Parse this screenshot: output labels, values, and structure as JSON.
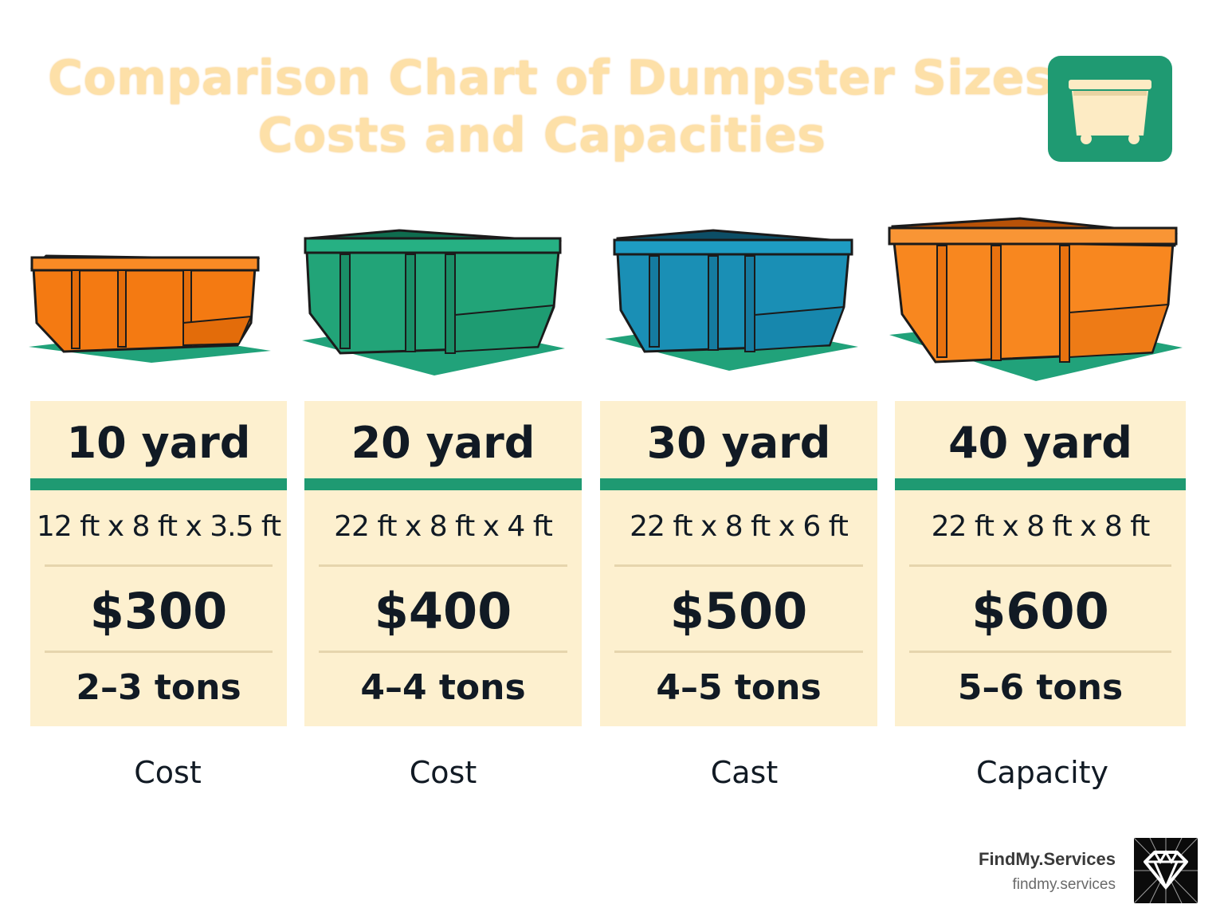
{
  "header": {
    "title_line1": "Comparison Chart of Dumpster Sizes,",
    "title_line2": "Costs and Capacities",
    "icon": "dumpster-icon"
  },
  "colors": {
    "accent_green": "#1f9a72",
    "card_bg": "#fdf0cf",
    "title": "#fde0a8",
    "orange": "#f47a12",
    "blue": "#1a8fb5"
  },
  "dumpsters": [
    {
      "size": "10 yard",
      "dimensions": "12 ft x 8 ft x 3.5 ft",
      "price": "$300",
      "tons": "2–3 tons",
      "caption": "Cost",
      "color": "orange"
    },
    {
      "size": "20 yard",
      "dimensions": "22 ft x 8 ft x 4 ft",
      "price": "$400",
      "tons": "4–4 tons",
      "caption": "Cost",
      "color": "green"
    },
    {
      "size": "30 yard",
      "dimensions": "22 ft x 8 ft x 6 ft",
      "price": "$500",
      "tons": "4–5 tons",
      "caption": "Cast",
      "color": "blue"
    },
    {
      "size": "40 yard",
      "dimensions": "22 ft x 8 ft x 8 ft",
      "price": "$600",
      "tons": "5–6 tons",
      "caption": "Capacity",
      "color": "orange"
    }
  ],
  "brand": {
    "name": "FindMy.Services",
    "url": "findmy.services",
    "logo": "diamond-logo-icon"
  }
}
